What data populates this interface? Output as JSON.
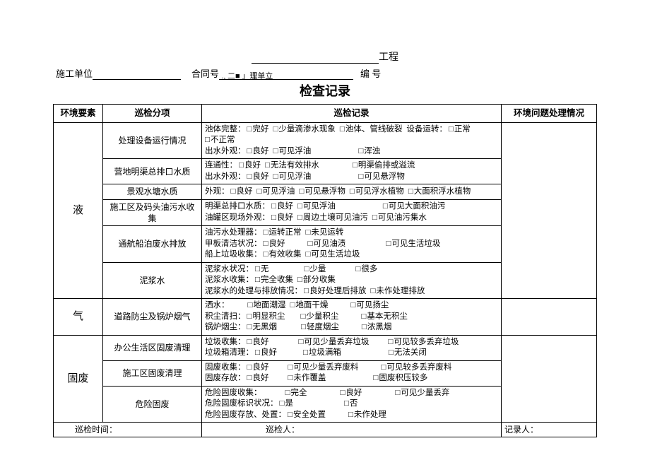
{
  "header": {
    "project_suffix": "工程",
    "unit_label": "施工单位",
    "contract_label": "合同号",
    "mid_text": "., 二■ 」理单立",
    "number_label": "编 号"
  },
  "title": "检查记录",
  "columns": {
    "cat": "环境要素",
    "sub": "巡检分项",
    "rec": "巡检记录",
    "resolve": "环境问题处理情况"
  },
  "footer": {
    "time": "巡检时间：",
    "inspector": "巡检人：",
    "recorder": "记录人："
  },
  "groups": [
    {
      "cat": "液",
      "rows": [
        {
          "sub": "处理设备运行情况",
          "lines": [
            [
              {
                "t": "池体完整："
              },
              {
                "cb": "完好"
              },
              {
                "cb": "少量滴渗水现象"
              },
              {
                "cb": "池体、管线破裂"
              },
              {
                "t": " 设备运转："
              },
              {
                "cb": "正常"
              },
              {
                "cb": "不正常"
              }
            ],
            [
              {
                "t": "出水外观："
              },
              {
                "cb": "良好"
              },
              {
                "cb": "可见浮油"
              },
              {
                "sp": 55
              },
              {
                "cb": "浑浊"
              }
            ]
          ]
        },
        {
          "sub": "营地明渠总排口水质",
          "lines": [
            [
              {
                "t": "连通性："
              },
              {
                "cb": "良好"
              },
              {
                "cb": "无法有效排水"
              },
              {
                "sp": 35
              },
              {
                "cb": "明渠偷排或溢流"
              }
            ],
            [
              {
                "t": "出水外观："
              },
              {
                "cb": "良好"
              },
              {
                "cb": "可见浮油"
              },
              {
                "sp": 55
              },
              {
                "cb": "可见悬浮物"
              }
            ]
          ]
        },
        {
          "sub": "景观水塘水质",
          "lines": [
            [
              {
                "t": "外观："
              },
              {
                "cb": "良好"
              },
              {
                "cb": "可见浮油"
              },
              {
                "cb": "可见悬浮物"
              },
              {
                "cb": "可见浮水植物"
              },
              {
                "cb": "大面积浮水植物"
              }
            ]
          ]
        },
        {
          "sub": "施工区及码头油污水收集",
          "lines": [
            [
              {
                "t": "明渠总排口水质："
              },
              {
                "cb": "良好"
              },
              {
                "cb": "可见浮油"
              },
              {
                "sp": 55
              },
              {
                "cb": "可见大面积油污"
              }
            ],
            [
              {
                "t": "油罐区现场外观："
              },
              {
                "cb": "良好"
              },
              {
                "cb": "周边土壤可见油污"
              },
              {
                "cb": "可见油污集水"
              }
            ]
          ]
        },
        {
          "sub": "通航船泊废水排放",
          "lines": [
            [
              {
                "t": "油污水处理器："
              },
              {
                "cb": "运转正常"
              },
              {
                "cb": "未见运转"
              }
            ],
            [
              {
                "t": "甲板清洁状况："
              },
              {
                "cb": "良好"
              },
              {
                "sp": 20
              },
              {
                "cb": "可见油渍"
              },
              {
                "sp": 45
              },
              {
                "cb": "可见生活垃圾"
              }
            ],
            [
              {
                "t": "船上垃圾收集："
              },
              {
                "cb": "有效收集"
              },
              {
                "cb": "可见生活垃圾"
              }
            ]
          ]
        },
        {
          "sub": "泥浆水",
          "lines": [
            [
              {
                "t": "泥浆水状况："
              },
              {
                "cb": "无"
              },
              {
                "sp": 38
              },
              {
                "cb": "少量"
              },
              {
                "sp": 30
              },
              {
                "cb": "很多"
              }
            ],
            [
              {
                "t": "泥浆水收集："
              },
              {
                "cb": "完全收集"
              },
              {
                "cb": "部分收集"
              }
            ],
            [
              {
                "t": "泥浆水的处理与排放情况："
              },
              {
                "cb": "良好处理后排放"
              },
              {
                "cb": "未作处理排放"
              }
            ]
          ]
        }
      ]
    },
    {
      "cat": "气",
      "rows": [
        {
          "sub": "道路防尘及锅炉烟气",
          "lines": [
            [
              {
                "t": "洒水："
              },
              {
                "sp": 18
              },
              {
                "cb": "地面潮湿"
              },
              {
                "cb": "地面干燥"
              },
              {
                "sp": 20
              },
              {
                "cb": "可见扬尘"
              }
            ],
            [
              {
                "t": "积尘清扫："
              },
              {
                "cb": "明显积尘"
              },
              {
                "sp": 10
              },
              {
                "cb": "少量积尘"
              },
              {
                "sp": 20
              },
              {
                "cb": "基本无积尘"
              }
            ],
            [
              {
                "t": "锅炉烟尘："
              },
              {
                "cb": "无黑烟"
              },
              {
                "sp": 22
              },
              {
                "cb": "轻度烟尘"
              },
              {
                "sp": 20
              },
              {
                "cb": "浓黑烟"
              }
            ]
          ]
        }
      ]
    },
    {
      "cat": "固废",
      "rows": [
        {
          "sub": "办公生活区固废清理",
          "lines": [
            [
              {
                "t": "垃圾收集："
              },
              {
                "cb": "良好"
              },
              {
                "sp": 30
              },
              {
                "cb": "可见少量丢弃垃圾"
              },
              {
                "sp": 15
              },
              {
                "cb": "可见较多丢弃垃圾"
              }
            ],
            [
              {
                "t": "垃圾箱清理："
              },
              {
                "cb": "良好"
              },
              {
                "sp": 25
              },
              {
                "cb": "垃圾满箱"
              },
              {
                "sp": 55
              },
              {
                "cb": "无法关闭"
              }
            ]
          ]
        },
        {
          "sub": "施工区固废清理",
          "lines": [
            [
              {
                "t": "固废收集："
              },
              {
                "cb": "良好"
              },
              {
                "sp": 15
              },
              {
                "cb": "可见少量丢弃废料"
              },
              {
                "sp": 20
              },
              {
                "cb": "可见较多丢弃废料"
              }
            ],
            [
              {
                "t": "固废存放："
              },
              {
                "cb": "良好"
              },
              {
                "sp": 15
              },
              {
                "cb": "未作覆盖"
              },
              {
                "sp": 55
              },
              {
                "cb": "固废积压较多"
              }
            ]
          ]
        },
        {
          "sub": "危险固废",
          "lines": [
            [
              {
                "t": "危险固废收集："
              },
              {
                "sp": 25
              },
              {
                "cb": "完全"
              },
              {
                "sp": 35
              },
              {
                "cb": "良好"
              },
              {
                "sp": 35
              },
              {
                "cb": "可见少量丢弃"
              }
            ],
            [
              {
                "t": "危险固废标识状况："
              },
              {
                "cb": "是"
              },
              {
                "sp": 60
              },
              {
                "cb": "否"
              }
            ],
            [
              {
                "t": "危险固废存放、处置："
              },
              {
                "cb": "安全处置"
              },
              {
                "sp": 20
              },
              {
                "cb": "未作处理"
              }
            ]
          ]
        }
      ]
    }
  ]
}
